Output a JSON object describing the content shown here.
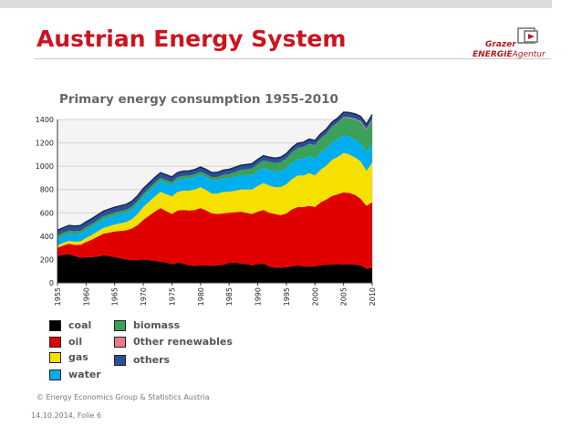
{
  "slide": {
    "title": "Austrian Energy System",
    "source": "© Energy Economics Group & Statistics Austria",
    "footer": "14.10.2014, Folie 6"
  },
  "logo": {
    "line1": "Grazer",
    "line2_bold": "ENERGIE",
    "line2_rest": "Agentur"
  },
  "chart_data": {
    "type": "area",
    "stacked": true,
    "title": "Primary energy consumption 1955-2010",
    "xlabel": "",
    "ylabel": "",
    "ylim": [
      0,
      1400
    ],
    "yticks": [
      0,
      200,
      400,
      600,
      800,
      1000,
      1200,
      1400
    ],
    "xticks": [
      1955,
      1960,
      1965,
      1970,
      1975,
      1980,
      1985,
      1990,
      1995,
      2000,
      2005,
      2010
    ],
    "grid": true,
    "x": [
      1955,
      1956,
      1957,
      1958,
      1959,
      1960,
      1961,
      1962,
      1963,
      1964,
      1965,
      1966,
      1967,
      1968,
      1969,
      1970,
      1971,
      1972,
      1973,
      1974,
      1975,
      1976,
      1977,
      1978,
      1979,
      1980,
      1981,
      1982,
      1983,
      1984,
      1985,
      1986,
      1987,
      1988,
      1989,
      1990,
      1991,
      1992,
      1993,
      1994,
      1995,
      1996,
      1997,
      1998,
      1999,
      2000,
      2001,
      2002,
      2003,
      2004,
      2005,
      2006,
      2007,
      2008,
      2009,
      2010
    ],
    "series": [
      {
        "name": "coal",
        "color": "#000000",
        "values": [
          230,
          240,
          245,
          230,
          215,
          220,
          220,
          225,
          235,
          230,
          220,
          210,
          200,
          195,
          195,
          200,
          195,
          190,
          180,
          175,
          160,
          170,
          165,
          150,
          145,
          150,
          150,
          145,
          150,
          155,
          170,
          175,
          165,
          160,
          150,
          160,
          165,
          140,
          130,
          130,
          135,
          140,
          150,
          140,
          140,
          140,
          150,
          155,
          155,
          160,
          155,
          160,
          155,
          150,
          120,
          130
        ]
      },
      {
        "name": "oil",
        "color": "#e00000",
        "values": [
          70,
          80,
          90,
          95,
          110,
          130,
          150,
          170,
          185,
          200,
          220,
          235,
          250,
          270,
          300,
          340,
          380,
          420,
          460,
          440,
          430,
          450,
          460,
          470,
          480,
          490,
          470,
          450,
          440,
          440,
          430,
          430,
          445,
          440,
          440,
          450,
          460,
          460,
          460,
          450,
          460,
          490,
          500,
          510,
          520,
          510,
          540,
          560,
          590,
          600,
          620,
          610,
          600,
          570,
          540,
          560
        ]
      },
      {
        "name": "gas",
        "color": "#f5e000",
        "values": [
          20,
          22,
          25,
          28,
          30,
          35,
          40,
          45,
          50,
          55,
          60,
          65,
          70,
          80,
          95,
          110,
          120,
          130,
          140,
          145,
          150,
          160,
          165,
          170,
          175,
          180,
          175,
          170,
          175,
          185,
          180,
          185,
          190,
          200,
          210,
          220,
          230,
          235,
          230,
          240,
          250,
          260,
          270,
          270,
          280,
          270,
          280,
          290,
          310,
          320,
          340,
          330,
          320,
          320,
          300,
          340
        ]
      },
      {
        "name": "water",
        "color": "#00aeef",
        "values": [
          60,
          60,
          62,
          64,
          66,
          68,
          70,
          72,
          74,
          76,
          78,
          80,
          82,
          84,
          86,
          88,
          90,
          92,
          94,
          96,
          98,
          100,
          102,
          104,
          106,
          108,
          110,
          112,
          114,
          116,
          118,
          120,
          122,
          124,
          126,
          128,
          130,
          132,
          134,
          136,
          138,
          140,
          142,
          144,
          146,
          148,
          150,
          150,
          150,
          150,
          152,
          154,
          156,
          158,
          160,
          162
        ]
      },
      {
        "name": "biomass",
        "color": "#3aa05a",
        "values": [
          25,
          25,
          25,
          25,
          25,
          25,
          25,
          25,
          25,
          25,
          25,
          25,
          25,
          25,
          25,
          25,
          25,
          25,
          25,
          25,
          25,
          25,
          25,
          25,
          25,
          25,
          26,
          27,
          28,
          30,
          35,
          40,
          45,
          50,
          55,
          60,
          65,
          70,
          75,
          80,
          85,
          90,
          95,
          100,
          105,
          110,
          115,
          120,
          130,
          140,
          150,
          160,
          170,
          180,
          190,
          200
        ]
      },
      {
        "name": "0ther renewables",
        "color": "#e87a8a",
        "values": [
          0,
          0,
          0,
          0,
          0,
          0,
          0,
          0,
          0,
          0,
          0,
          0,
          0,
          0,
          0,
          0,
          0,
          0,
          0,
          0,
          0,
          0,
          0,
          0,
          0,
          0,
          0,
          0,
          0,
          0,
          0,
          0,
          0,
          0,
          0,
          0,
          0,
          0,
          0,
          0,
          0,
          0,
          0,
          1,
          1,
          2,
          2,
          3,
          3,
          4,
          5,
          6,
          7,
          8,
          9,
          10
        ]
      },
      {
        "name": "others",
        "color": "#2a4f9a",
        "values": [
          45,
          45,
          45,
          45,
          45,
          45,
          45,
          45,
          45,
          45,
          45,
          45,
          45,
          45,
          45,
          45,
          45,
          45,
          45,
          45,
          45,
          40,
          40,
          40,
          40,
          40,
          40,
          40,
          40,
          40,
          40,
          40,
          40,
          40,
          40,
          40,
          40,
          40,
          40,
          40,
          40,
          40,
          40,
          40,
          40,
          40,
          40,
          40,
          40,
          40,
          40,
          40,
          40,
          40,
          40,
          40
        ]
      }
    ]
  },
  "legend": {
    "items": [
      {
        "label": "coal",
        "color": "#000000"
      },
      {
        "label": "oil",
        "color": "#e00000"
      },
      {
        "label": "gas",
        "color": "#f5e000"
      },
      {
        "label": "water",
        "color": "#00aeef"
      },
      {
        "label": "biomass",
        "color": "#3aa05a"
      },
      {
        "label": "0ther renewables",
        "color": "#e87a8a"
      },
      {
        "label": "others",
        "color": "#2a4f9a"
      }
    ]
  }
}
